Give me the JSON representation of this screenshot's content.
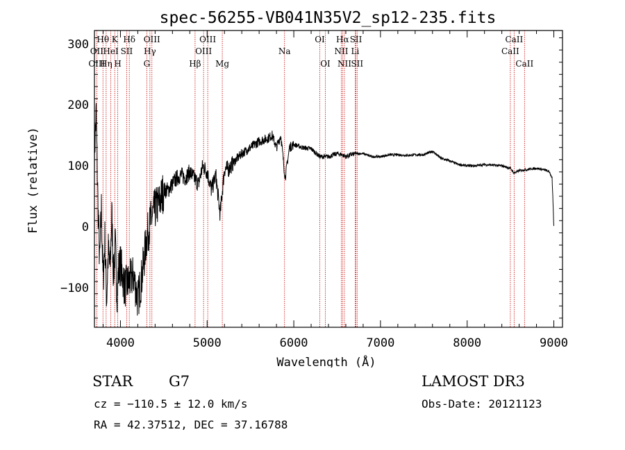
{
  "chart_data": {
    "type": "line",
    "title": "spec-56255-VB041N35V2_sp12-235.fits",
    "xlabel": "Wavelength (Å)",
    "ylabel": "Flux (relative)",
    "xlim": [
      3700,
      9100
    ],
    "ylim": [
      -165,
      322
    ],
    "xticks": [
      4000,
      5000,
      6000,
      7000,
      8000,
      9000
    ],
    "yticks": [
      -100,
      0,
      100,
      200,
      300
    ],
    "spectrum": {
      "name": "flux",
      "x": [
        3700,
        3720,
        3740,
        3760,
        3780,
        3800,
        3820,
        3840,
        3860,
        3880,
        3900,
        3920,
        3940,
        3960,
        3980,
        4000,
        4050,
        4100,
        4150,
        4200,
        4250,
        4300,
        4350,
        4400,
        4450,
        4500,
        4550,
        4600,
        4650,
        4700,
        4750,
        4800,
        4850,
        4900,
        4950,
        5000,
        5050,
        5100,
        5150,
        5200,
        5250,
        5300,
        5400,
        5500,
        5600,
        5700,
        5750,
        5800,
        5850,
        5900,
        5950,
        6000,
        6100,
        6200,
        6300,
        6400,
        6500,
        6560,
        6600,
        6700,
        6800,
        6900,
        7000,
        7100,
        7200,
        7300,
        7400,
        7500,
        7600,
        7650,
        7700,
        7800,
        7900,
        8000,
        8100,
        8200,
        8300,
        8400,
        8500,
        8540,
        8600,
        8700,
        8800,
        8900,
        8950,
        8980,
        9000
      ],
      "y": [
        120,
        185,
        40,
        -60,
        30,
        -90,
        -20,
        -120,
        -40,
        -70,
        20,
        -80,
        -30,
        -110,
        -70,
        -60,
        -100,
        -90,
        -80,
        -120,
        -80,
        -20,
        10,
        30,
        40,
        60,
        60,
        70,
        80,
        85,
        80,
        90,
        80,
        70,
        100,
        90,
        60,
        85,
        20,
        95,
        95,
        105,
        120,
        130,
        140,
        145,
        150,
        130,
        150,
        80,
        130,
        135,
        130,
        128,
        115,
        115,
        120,
        118,
        115,
        120,
        120,
        115,
        115,
        118,
        118,
        117,
        118,
        118,
        124,
        118,
        112,
        108,
        102,
        100,
        100,
        102,
        101,
        100,
        96,
        88,
        92,
        94,
        96,
        93,
        90,
        80,
        0
      ]
    },
    "line_labels": [
      {
        "label": "Hθ",
        "wavelength": 3798,
        "row": 0
      },
      {
        "label": "OII",
        "wavelength": 3727,
        "row": 1
      },
      {
        "label": "OIII",
        "wavelength": 3727,
        "row": 2
      },
      {
        "label": "K",
        "wavelength": 3934,
        "row": 0
      },
      {
        "label": "HeI",
        "wavelength": 3889,
        "row": 1
      },
      {
        "label": "Hη",
        "wavelength": 3835,
        "row": 2
      },
      {
        "label": "H",
        "wavelength": 3969,
        "row": 2
      },
      {
        "label": "Hδ",
        "wavelength": 4102,
        "row": 0
      },
      {
        "label": "SII",
        "wavelength": 4072,
        "row": 1
      },
      {
        "label": "OIII",
        "wavelength": 4363,
        "row": 0
      },
      {
        "label": "Hγ",
        "wavelength": 4340,
        "row": 1
      },
      {
        "label": "G",
        "wavelength": 4304,
        "row": 2
      },
      {
        "label": "Hβ",
        "wavelength": 4861,
        "row": 2
      },
      {
        "label": "OIII",
        "wavelength": 5007,
        "row": 0
      },
      {
        "label": "OIII",
        "wavelength": 4959,
        "row": 1
      },
      {
        "label": "Mg",
        "wavelength": 5175,
        "row": 2
      },
      {
        "label": "Na",
        "wavelength": 5893,
        "row": 1
      },
      {
        "label": "OI",
        "wavelength": 6300,
        "row": 0
      },
      {
        "label": "OI",
        "wavelength": 6364,
        "row": 2
      },
      {
        "label": "Hα",
        "wavelength": 6563,
        "row": 0
      },
      {
        "label": "NII",
        "wavelength": 6548,
        "row": 1
      },
      {
        "label": "NII",
        "wavelength": 6584,
        "row": 2
      },
      {
        "label": "SII",
        "wavelength": 6717,
        "row": 0
      },
      {
        "label": "Li",
        "wavelength": 6708,
        "row": 1
      },
      {
        "label": "SII",
        "wavelength": 6731,
        "row": 2
      },
      {
        "label": "CaII",
        "wavelength": 8542,
        "row": 0
      },
      {
        "label": "CaII",
        "wavelength": 8498,
        "row": 1
      },
      {
        "label": "CaII",
        "wavelength": 8662,
        "row": 2
      }
    ]
  },
  "info": {
    "object_class": "STAR",
    "subclass": "G7",
    "survey": "LAMOST DR3",
    "redshift": "cz = −110.5 ± 12.0 km/s",
    "obs_date": "Obs-Date: 20121123",
    "coords": "RA =  42.37512, DEC =  37.16788"
  },
  "colors": {
    "spectrum": "#000000",
    "line_markers": "#cc0000",
    "axes": "#000000"
  }
}
